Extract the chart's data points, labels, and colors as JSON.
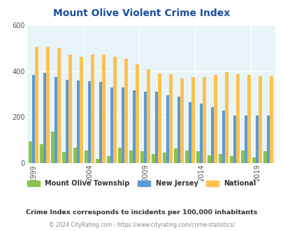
{
  "title": "Mount Olive Violent Crime Index",
  "years": [
    1999,
    2000,
    2001,
    2002,
    2003,
    2004,
    2005,
    2006,
    2007,
    2008,
    2009,
    2010,
    2011,
    2012,
    2013,
    2014,
    2015,
    2016,
    2017,
    2018,
    2019,
    2020
  ],
  "mount_olive": [
    95,
    82,
    135,
    48,
    65,
    55,
    18,
    28,
    65,
    55,
    50,
    38,
    45,
    62,
    55,
    50,
    32,
    38,
    28,
    55,
    22,
    50
  ],
  "new_jersey": [
    383,
    392,
    375,
    362,
    358,
    355,
    353,
    328,
    328,
    318,
    312,
    312,
    295,
    288,
    264,
    258,
    242,
    228,
    208,
    208,
    208,
    208
  ],
  "national": [
    507,
    507,
    500,
    472,
    463,
    472,
    472,
    463,
    455,
    430,
    407,
    390,
    388,
    368,
    376,
    375,
    385,
    397,
    388,
    383,
    378,
    378
  ],
  "mount_olive_color": "#8bc34a",
  "new_jersey_color": "#5b9bd5",
  "national_color": "#ffc04d",
  "bg_color": "#e8f4f8",
  "fig_bg": "#ffffff",
  "ylim": [
    0,
    600
  ],
  "yticks": [
    0,
    200,
    400,
    600
  ],
  "xlabel_ticks": [
    1999,
    2004,
    2009,
    2014,
    2019
  ],
  "title_color": "#1f4e9e",
  "subtitle": "Crime Index corresponds to incidents per 100,000 inhabitants",
  "subtitle_color": "#333333",
  "footer": "© 2024 CityRating.com - https://www.cityrating.com/crime-statistics/",
  "footer_color": "#888888",
  "legend_labels": [
    "Mount Olive Township",
    "New Jersey",
    "National"
  ],
  "bar_width": 0.28
}
